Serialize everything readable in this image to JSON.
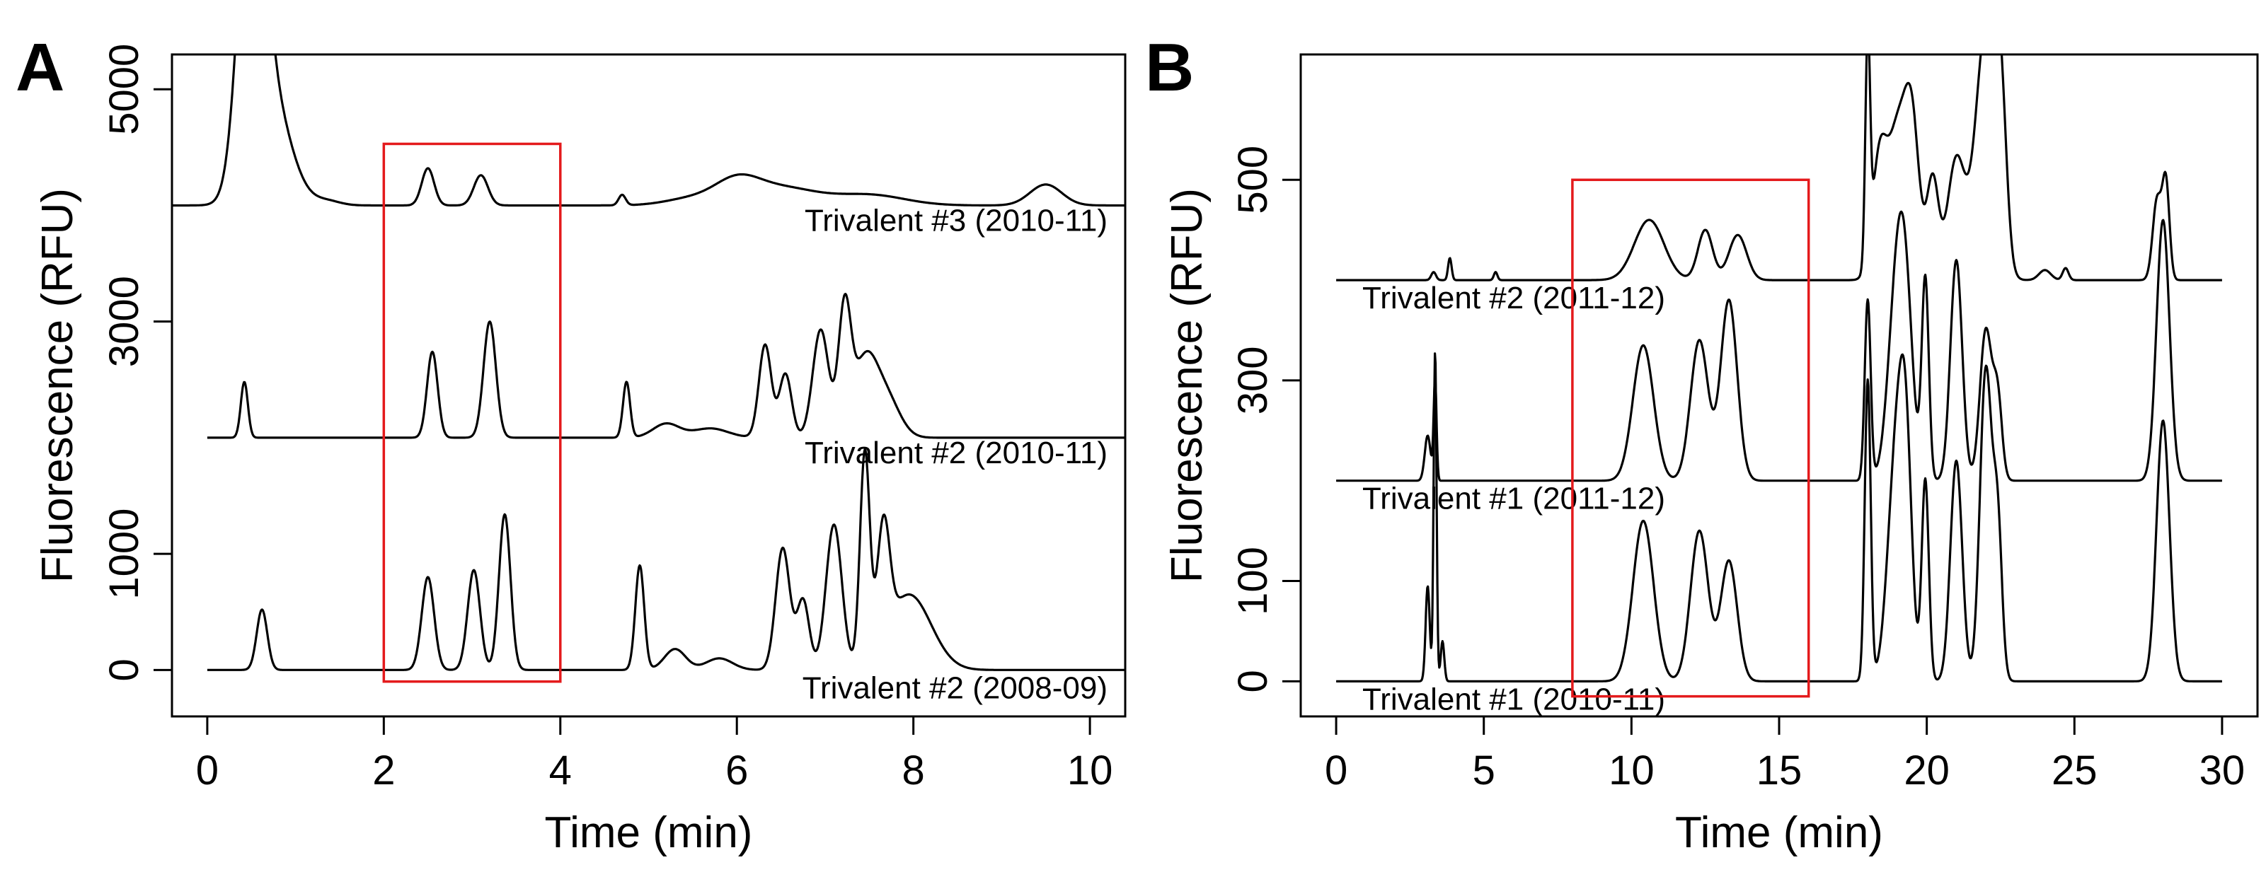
{
  "chart_data": [
    {
      "panel": "A",
      "type": "line",
      "xlabel": "Time (min)",
      "ylabel": "Fluorescence (RFU)",
      "xlim": [
        -0.4,
        10.4
      ],
      "ylim": [
        -400,
        5300
      ],
      "xticks": [
        0,
        2,
        4,
        6,
        8,
        10
      ],
      "yticks": [
        0,
        1000,
        3000,
        5000
      ],
      "highlight_box": {
        "x": [
          2,
          4
        ],
        "y": [
          -100,
          4530
        ],
        "color": "#e41a1c"
      },
      "series": [
        {
          "name": "Trivalent #2 (2008-09)",
          "baseline": 0,
          "xrange": [
            0,
            10.6
          ],
          "peaks": [
            [
              0.62,
              520,
              0.06
            ],
            [
              2.5,
              800,
              0.07
            ],
            [
              3.02,
              860,
              0.07
            ],
            [
              3.37,
              1340,
              0.065
            ],
            [
              4.9,
              900,
              0.05
            ],
            [
              5.3,
              180,
              0.12
            ],
            [
              5.8,
              100,
              0.15
            ],
            [
              6.52,
              1050,
              0.08
            ],
            [
              6.75,
              600,
              0.07
            ],
            [
              7.1,
              1250,
              0.09
            ],
            [
              7.45,
              1800,
              0.055
            ],
            [
              7.66,
              1000,
              0.07
            ],
            [
              7.95,
              650,
              0.25
            ]
          ]
        },
        {
          "name": "Trivalent #2 (2010-11)",
          "baseline": 2000,
          "xrange": [
            0,
            10.6
          ],
          "peaks": [
            [
              0.42,
              480,
              0.04
            ],
            [
              2.55,
              740,
              0.06
            ],
            [
              3.2,
              1000,
              0.07
            ],
            [
              4.75,
              480,
              0.04
            ],
            [
              5.2,
              120,
              0.15
            ],
            [
              5.7,
              80,
              0.2
            ],
            [
              6.32,
              800,
              0.07
            ],
            [
              6.55,
              550,
              0.07
            ],
            [
              6.95,
              930,
              0.09
            ],
            [
              7.22,
              1050,
              0.07
            ],
            [
              7.45,
              650,
              0.14
            ],
            [
              7.7,
              320,
              0.15
            ]
          ]
        },
        {
          "name": "Trivalent #3 (2010-11)",
          "baseline": 4000,
          "xrange": [
            -0.4,
            10.6
          ],
          "peaks": [
            [
              0.5,
              2800,
              0.14
            ],
            [
              0.72,
              900,
              0.22
            ],
            [
              1.35,
              40,
              0.15
            ],
            [
              2.5,
              320,
              0.07
            ],
            [
              3.1,
              260,
              0.08
            ],
            [
              4.7,
              90,
              0.04
            ],
            [
              5.5,
              60,
              0.3
            ],
            [
              6.0,
              180,
              0.25
            ],
            [
              6.5,
              150,
              0.4
            ],
            [
              7.5,
              90,
              0.4
            ],
            [
              9.5,
              180,
              0.18
            ]
          ]
        }
      ]
    },
    {
      "panel": "B",
      "type": "line",
      "xlabel": "Time (min)",
      "ylabel": "Fluorescence (RFU)",
      "xlim": [
        -1.2,
        31.2
      ],
      "ylim": [
        -35,
        625
      ],
      "xticks": [
        0,
        5,
        10,
        15,
        20,
        25,
        30
      ],
      "yticks": [
        0,
        100,
        300,
        500
      ],
      "highlight_box": {
        "x": [
          8,
          16
        ],
        "y": [
          -15,
          500
        ],
        "color": "#e41a1c"
      },
      "series": [
        {
          "name": "Trivalent #1 (2010-11)",
          "baseline": 0,
          "xrange": [
            0,
            30
          ],
          "peaks": [
            [
              3.1,
              95,
              0.07
            ],
            [
              3.35,
              330,
              0.05
            ],
            [
              3.6,
              40,
              0.06
            ],
            [
              10.4,
              160,
              0.35
            ],
            [
              12.3,
              150,
              0.3
            ],
            [
              13.3,
              120,
              0.28
            ],
            [
              18.0,
              300,
              0.1
            ],
            [
              19.0,
              240,
              0.3
            ],
            [
              19.3,
              150,
              0.2
            ],
            [
              19.95,
              200,
              0.12
            ],
            [
              21.0,
              220,
              0.2
            ],
            [
              22.0,
              310,
              0.2
            ],
            [
              22.4,
              150,
              0.15
            ],
            [
              28.0,
              260,
              0.22
            ]
          ]
        },
        {
          "name": "Trivalent #1 (2011-12)",
          "baseline": 200,
          "xrange": [
            0,
            30
          ],
          "peaks": [
            [
              3.1,
              45,
              0.1
            ],
            [
              3.35,
              100,
              0.05
            ],
            [
              10.4,
              135,
              0.35
            ],
            [
              12.3,
              140,
              0.3
            ],
            [
              13.3,
              180,
              0.28
            ],
            [
              18.0,
              180,
              0.1
            ],
            [
              19.0,
              190,
              0.3
            ],
            [
              19.3,
              120,
              0.25
            ],
            [
              19.95,
              200,
              0.12
            ],
            [
              21.0,
              220,
              0.2
            ],
            [
              22.0,
              150,
              0.2
            ],
            [
              22.4,
              80,
              0.15
            ],
            [
              28.0,
              260,
              0.22
            ]
          ]
        },
        {
          "name": "Trivalent #2 (2011-12)",
          "baseline": 400,
          "xrange": [
            0,
            30
          ],
          "peaks": [
            [
              3.3,
              8,
              0.08
            ],
            [
              3.85,
              22,
              0.06
            ],
            [
              5.4,
              8,
              0.06
            ],
            [
              10.6,
              60,
              0.5
            ],
            [
              12.5,
              50,
              0.25
            ],
            [
              13.6,
              45,
              0.3
            ],
            [
              18.0,
              220,
              0.08
            ],
            [
              18.4,
              120,
              0.25
            ],
            [
              19.0,
              140,
              0.3
            ],
            [
              19.5,
              150,
              0.25
            ],
            [
              20.2,
              100,
              0.2
            ],
            [
              21.0,
              120,
              0.3
            ],
            [
              22.0,
              250,
              0.35
            ],
            [
              22.5,
              150,
              0.2
            ],
            [
              24.0,
              10,
              0.2
            ],
            [
              24.7,
              12,
              0.1
            ],
            [
              27.8,
              80,
              0.15
            ],
            [
              28.1,
              95,
              0.12
            ]
          ]
        }
      ]
    }
  ]
}
